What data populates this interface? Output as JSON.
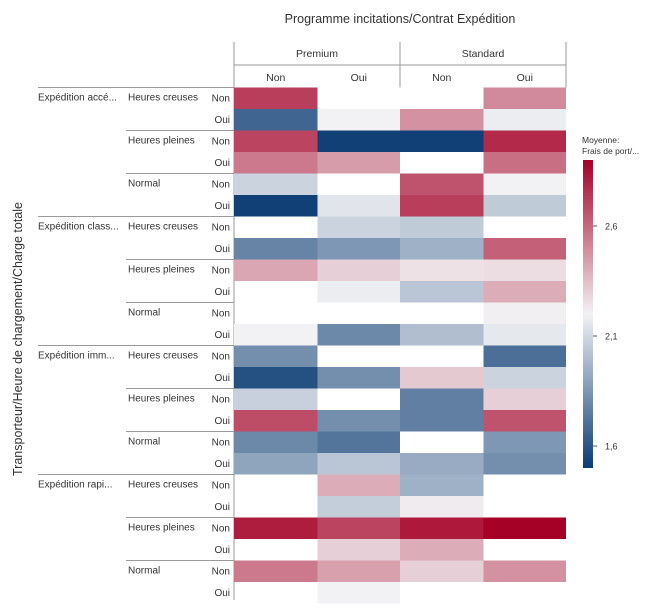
{
  "chart_data": {
    "type": "heatmap",
    "title": "Programme incitations/Contrat Expédition",
    "ylabel": "Transporteur/Heure de chargement/Charge totale",
    "column_groups": [
      {
        "label": "Premium",
        "columns": [
          "Non",
          "Oui"
        ]
      },
      {
        "label": "Standard",
        "columns": [
          "Non",
          "Oui"
        ]
      }
    ],
    "row_groups": [
      {
        "label": "Expédition accé...",
        "subgroups": [
          {
            "label": "Heures creuses",
            "rows": [
              "Non",
              "Oui"
            ]
          },
          {
            "label": "Heures pleines",
            "rows": [
              "Non",
              "Oui"
            ]
          },
          {
            "label": "Normal",
            "rows": [
              "Non",
              "Oui"
            ]
          }
        ]
      },
      {
        "label": "Expédition class...",
        "subgroups": [
          {
            "label": "Heures creuses",
            "rows": [
              "Non",
              "Oui"
            ]
          },
          {
            "label": "Heures pleines",
            "rows": [
              "Non",
              "Oui"
            ]
          },
          {
            "label": "Normal",
            "rows": [
              "Non",
              "Oui"
            ]
          }
        ]
      },
      {
        "label": "Expédition imm...",
        "subgroups": [
          {
            "label": "Heures creuses",
            "rows": [
              "Non",
              "Oui"
            ]
          },
          {
            "label": "Heures pleines",
            "rows": [
              "Non",
              "Oui"
            ]
          },
          {
            "label": "Normal",
            "rows": [
              "Non",
              "Oui"
            ]
          }
        ]
      },
      {
        "label": "Expédition rapi...",
        "subgroups": [
          {
            "label": "Heures creuses",
            "rows": [
              "Non",
              "Oui"
            ]
          },
          {
            "label": "Heures pleines",
            "rows": [
              "Non",
              "Oui"
            ]
          },
          {
            "label": "Normal",
            "rows": [
              "Non",
              "Oui"
            ]
          }
        ]
      }
    ],
    "values": [
      [
        2.72,
        null,
        null,
        2.5
      ],
      [
        1.66,
        2.2,
        2.48,
        2.18
      ],
      [
        2.7,
        1.52,
        1.52,
        2.78
      ],
      [
        2.55,
        2.45,
        null,
        2.58
      ],
      [
        2.08,
        null,
        2.66,
        2.2
      ],
      [
        1.52,
        2.15,
        2.72,
        2.05
      ],
      [
        null,
        2.08,
        2.05,
        null
      ],
      [
        1.78,
        1.85,
        1.95,
        2.62
      ],
      [
        2.42,
        2.3,
        2.25,
        2.26
      ],
      [
        null,
        2.18,
        2.03,
        2.4
      ],
      [
        null,
        null,
        null,
        2.21
      ],
      [
        2.2,
        1.8,
        2.0,
        2.16
      ],
      [
        1.82,
        null,
        null,
        1.7
      ],
      [
        1.58,
        1.82,
        2.32,
        2.08
      ],
      [
        2.07,
        null,
        1.76,
        2.3
      ],
      [
        2.68,
        1.82,
        1.76,
        2.66
      ],
      [
        1.8,
        1.72,
        null,
        1.85
      ],
      [
        1.9,
        2.03,
        1.93,
        1.82
      ],
      [
        null,
        2.4,
        1.95,
        null
      ],
      [
        null,
        2.06,
        2.22,
        null
      ],
      [
        2.82,
        2.7,
        2.83,
        2.92
      ],
      [
        null,
        2.3,
        2.4,
        null
      ],
      [
        2.55,
        2.44,
        2.3,
        2.48
      ],
      [
        null,
        2.2,
        null,
        null
      ]
    ],
    "colorbar": {
      "title": "Moyenne: Frais de port/...",
      "title_lines": [
        "Moyenne:",
        "Frais de port/..."
      ],
      "ticks": [
        1.6,
        2.1,
        2.6
      ],
      "tick_labels": [
        "1,6",
        "2,1",
        "2,6"
      ],
      "range": [
        1.5,
        2.9
      ],
      "colors": [
        "#0a3b73",
        "#f2f2f4",
        "#a50026"
      ]
    }
  }
}
